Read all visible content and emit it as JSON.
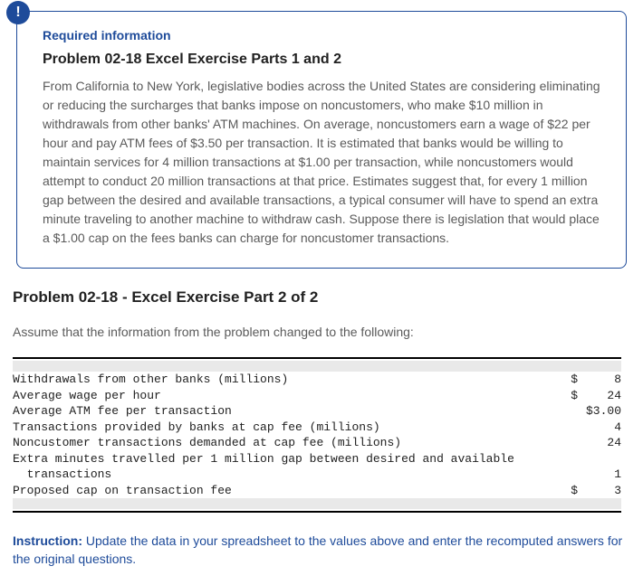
{
  "info": {
    "badge_glyph": "!",
    "required_heading": "Required information",
    "problem_title": "Problem 02-18 Excel Exercise Parts 1 and 2",
    "body": "From California to New York, legislative bodies across the United States are considering eliminating or reducing the surcharges that banks impose on noncustomers, who make $10 million in withdrawals from other banks' ATM machines. On average, noncustomers earn a wage of $22 per hour and pay ATM fees of $3.50 per transaction. It is estimated that banks would be willing to maintain services for 4 million transactions at $1.00 per transaction, while noncustomers would attempt to conduct 20 million transactions at that price. Estimates suggest that, for every 1 million gap between the desired and available transactions, a typical consumer will have to spend an extra minute traveling to another machine to withdraw cash. Suppose there is legislation that would place a $1.00 cap on the fees banks can charge for noncustomer transactions."
  },
  "section_title": "Problem 02-18 - Excel Exercise Part 2 of 2",
  "assume_text": "Assume that the information from the problem changed to the following:",
  "table": {
    "rows": [
      {
        "label": "Withdrawals from other banks (millions)",
        "dollar": "$",
        "value": "8"
      },
      {
        "label": "Average wage per hour",
        "dollar": "$",
        "value": "24"
      },
      {
        "label": "Average ATM fee per transaction",
        "dollar": "",
        "value": "$3.00"
      },
      {
        "label": "Transactions provided by banks at cap fee (millions)",
        "dollar": "",
        "value": "4"
      },
      {
        "label": "Noncustomer transactions demanded at cap fee (millions)",
        "dollar": "",
        "value": "24"
      },
      {
        "label": "Extra minutes travelled per 1 million gap between desired and available",
        "dollar": "",
        "value": ""
      },
      {
        "label": "  transactions",
        "dollar": "",
        "value": "1"
      },
      {
        "label": "Proposed cap on transaction fee",
        "dollar": "$",
        "value": "3"
      }
    ]
  },
  "instruction": {
    "lead": "Instruction:",
    "text": " Update the data in your spreadsheet to the values above and enter the recomputed answers for the original questions."
  }
}
